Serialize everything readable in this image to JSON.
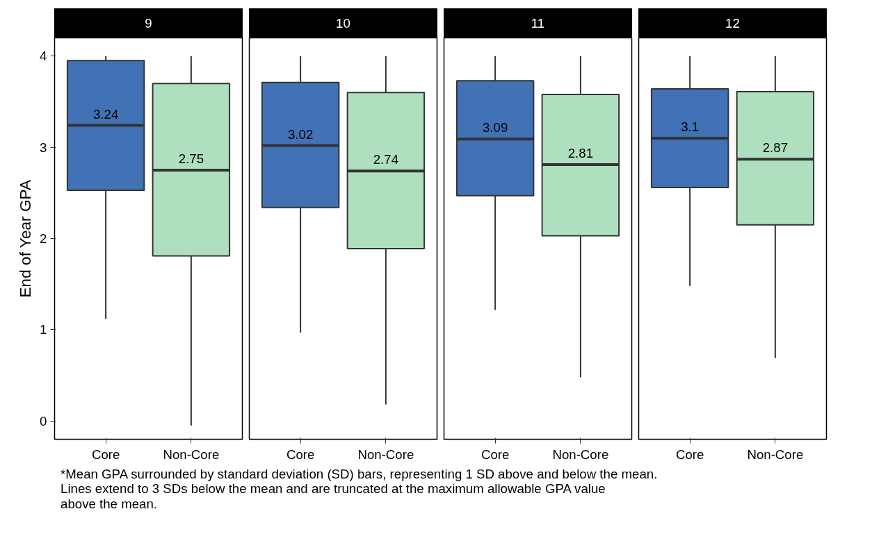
{
  "chart_data": [
    {
      "type": "box",
      "title": "9",
      "ylabel": "End of Year GPA",
      "categories": [
        "Core",
        "Non-Core"
      ],
      "colors": [
        "#4172b6",
        "#aee0bf"
      ],
      "ylim": [
        -0.2,
        4.2
      ],
      "yticks": [
        0,
        1,
        2,
        3,
        4
      ],
      "grid": false,
      "boxes": [
        {
          "low": 1.12,
          "q1": 2.53,
          "median": 3.24,
          "q3": 3.95,
          "high": 4
        },
        {
          "low": -0.05,
          "q1": 1.81,
          "median": 2.75,
          "q3": 3.7,
          "high": 4
        }
      ],
      "annotations": [
        {
          "text": "3.24",
          "x": "Core",
          "y": 3.24
        },
        {
          "text": "2.75",
          "x": "Non-Core",
          "y": 2.75
        },
        "*Mean GPA surrounded by standard deviation (SD) bars, representing 1 SD above and below the mean.\nLines extend to 3 SDs below the mean and are truncated at the maximum allowable GPA value\nabove the mean."
      ]
    },
    {
      "type": "box",
      "title": "10",
      "categories": [
        "Core",
        "Non-Core"
      ],
      "colors": [
        "#4172b6",
        "#aee0bf"
      ],
      "ylim": [
        -0.2,
        4.2
      ],
      "yticks": [
        0,
        1,
        2,
        3,
        4
      ],
      "tick_labels": "x",
      "grid": false,
      "boxes": [
        {
          "low": 0.97,
          "q1": 2.34,
          "median": 3.02,
          "q3": 3.71,
          "high": 4
        },
        {
          "low": 0.18,
          "q1": 1.89,
          "median": 2.74,
          "q3": 3.6,
          "high": 4
        }
      ],
      "annotations": [
        {
          "text": "3.02",
          "x": "Core",
          "y": 3.02
        },
        {
          "text": "2.74",
          "x": "Non-Core",
          "y": 2.74
        }
      ]
    },
    {
      "type": "box",
      "title": "11",
      "categories": [
        "Core",
        "Non-Core"
      ],
      "colors": [
        "#4172b6",
        "#aee0bf"
      ],
      "ylim": [
        -0.2,
        4.2
      ],
      "yticks": [
        0,
        1,
        2,
        3,
        4
      ],
      "tick_labels": "x",
      "grid": false,
      "boxes": [
        {
          "low": 1.22,
          "q1": 2.47,
          "median": 3.09,
          "q3": 3.73,
          "high": 4
        },
        {
          "low": 0.48,
          "q1": 2.03,
          "median": 2.81,
          "q3": 3.58,
          "high": 4
        }
      ],
      "annotations": [
        {
          "text": "3.09",
          "x": "Core",
          "y": 3.09
        },
        {
          "text": "2.81",
          "x": "Non-Core",
          "y": 2.81
        }
      ]
    },
    {
      "type": "box",
      "title": "12",
      "categories": [
        "Core",
        "Non-Core"
      ],
      "colors": [
        "#4172b6",
        "#aee0bf"
      ],
      "ylim": [
        -0.2,
        4.2
      ],
      "yticks": [
        0,
        1,
        2,
        3,
        4
      ],
      "tick_labels": "x",
      "grid": false,
      "boxes": [
        {
          "low": 1.48,
          "q1": 2.56,
          "median": 3.1,
          "q3": 3.64,
          "high": 4
        },
        {
          "low": 0.69,
          "q1": 2.15,
          "median": 2.87,
          "q3": 3.61,
          "high": 4
        }
      ],
      "annotations": [
        {
          "text": "3.1",
          "x": "Core",
          "y": 3.1
        },
        {
          "text": "2.87",
          "x": "Non-Core",
          "y": 2.87
        }
      ]
    }
  ]
}
